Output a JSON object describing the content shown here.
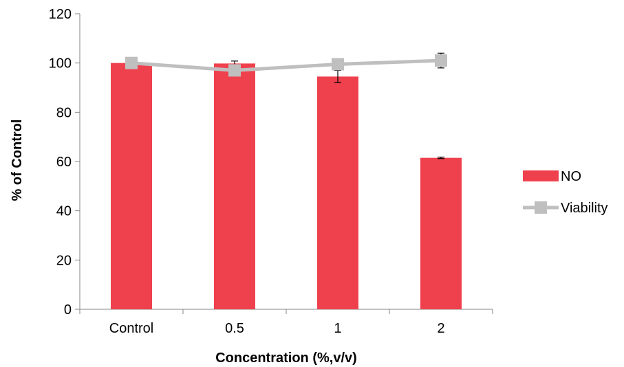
{
  "chart_data": {
    "type": "bar",
    "categories": [
      "Control",
      "0.5",
      "1",
      "2"
    ],
    "series": [
      {
        "name": "NO",
        "type": "bar",
        "values": [
          100,
          99.8,
          94.5,
          61.5
        ],
        "error": [
          0.0,
          1.0,
          2.5,
          0.3
        ]
      },
      {
        "name": "Viability",
        "type": "line",
        "values": [
          100,
          97,
          99.5,
          101
        ],
        "error": [
          0.0,
          0.0,
          0.0,
          3.0
        ]
      }
    ],
    "xlabel": "Concentration (%,v/v)",
    "ylabel": "% of Control",
    "ylim": [
      0,
      120
    ],
    "yticks": [
      "0",
      "20",
      "40",
      "60",
      "80",
      "100",
      "120"
    ],
    "grid": false,
    "legend_position": "right",
    "colors": {
      "bar": "#ef414d",
      "line": "#bfbfbf",
      "marker": "#bfbfbf",
      "axis": "#868686",
      "error_bar": "#000000"
    }
  }
}
